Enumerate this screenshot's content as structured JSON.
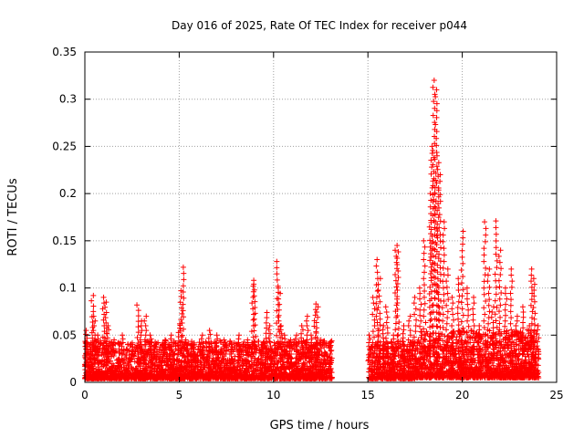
{
  "chart_data": {
    "type": "scatter",
    "title": "Day 016 of 2025, Rate Of TEC Index for receiver p044",
    "xlabel": "GPS time / hours",
    "ylabel": "ROTI / TECUs",
    "xlim": [
      0,
      25
    ],
    "ylim": [
      0,
      0.35
    ],
    "xticks": [
      0,
      5,
      10,
      15,
      20,
      25
    ],
    "yticks": [
      0,
      0.05,
      0.1,
      0.15,
      0.2,
      0.25,
      0.3,
      0.35
    ],
    "grid": true,
    "marker": "+",
    "color": "#ff0000",
    "data_gap": [
      13.1,
      15.0
    ],
    "series": [
      {
        "name": "ROTI",
        "x": [
          0.1,
          0.3,
          0.4,
          0.5,
          0.7,
          1.0,
          1.1,
          1.2,
          1.5,
          2.0,
          2.5,
          2.8,
          3.0,
          3.2,
          3.5,
          3.8,
          4.2,
          4.6,
          5.0,
          5.1,
          5.2,
          5.4,
          5.8,
          6.2,
          6.6,
          7.0,
          7.4,
          7.8,
          8.2,
          8.6,
          8.9,
          9.0,
          9.4,
          9.6,
          9.8,
          10.2,
          10.3,
          10.4,
          10.6,
          10.9,
          11.2,
          11.5,
          11.8,
          12.0,
          12.2,
          12.3,
          12.5,
          12.8,
          13.0,
          15.1,
          15.3,
          15.5,
          15.6,
          15.8,
          16.0,
          16.3,
          16.5,
          16.6,
          16.9,
          17.2,
          17.5,
          17.8,
          18.0,
          18.3,
          18.4,
          18.5,
          18.6,
          18.7,
          18.8,
          19.0,
          19.2,
          19.5,
          19.8,
          20.0,
          20.3,
          20.6,
          20.9,
          21.2,
          21.4,
          21.6,
          21.8,
          22.0,
          22.3,
          22.6,
          22.9,
          23.2,
          23.5,
          23.7,
          23.8,
          24.0
        ],
        "y": [
          0.055,
          0.04,
          0.092,
          0.07,
          0.05,
          0.09,
          0.085,
          0.06,
          0.045,
          0.05,
          0.04,
          0.082,
          0.065,
          0.07,
          0.05,
          0.04,
          0.045,
          0.05,
          0.062,
          0.097,
          0.122,
          0.045,
          0.04,
          0.05,
          0.055,
          0.05,
          0.045,
          0.04,
          0.05,
          0.045,
          0.108,
          0.104,
          0.04,
          0.074,
          0.06,
          0.128,
          0.1,
          0.06,
          0.05,
          0.045,
          0.05,
          0.06,
          0.07,
          0.05,
          0.083,
          0.08,
          0.045,
          0.03,
          0.02,
          0.05,
          0.09,
          0.13,
          0.11,
          0.06,
          0.08,
          0.05,
          0.14,
          0.145,
          0.06,
          0.07,
          0.09,
          0.1,
          0.15,
          0.2,
          0.25,
          0.32,
          0.31,
          0.24,
          0.22,
          0.17,
          0.12,
          0.09,
          0.11,
          0.16,
          0.1,
          0.09,
          0.06,
          0.17,
          0.12,
          0.08,
          0.171,
          0.14,
          0.1,
          0.12,
          0.07,
          0.08,
          0.06,
          0.12,
          0.11,
          0.06
        ]
      }
    ]
  }
}
